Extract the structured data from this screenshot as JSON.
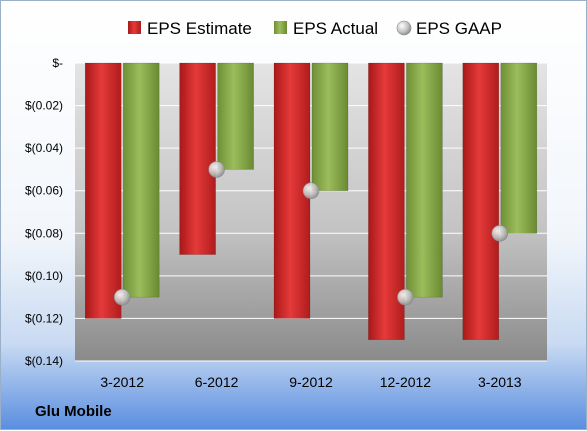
{
  "company": "Glu Mobile",
  "chart_data": {
    "type": "bar",
    "categories": [
      "3-2012",
      "6-2012",
      "9-2012",
      "12-2012",
      "3-2013"
    ],
    "series": [
      {
        "name": "EPS Estimate",
        "kind": "bar",
        "color": "#d42a2a",
        "values": [
          -0.12,
          -0.09,
          -0.12,
          -0.13,
          -0.13
        ]
      },
      {
        "name": "EPS Actual",
        "kind": "bar",
        "color": "#8aac4c",
        "values": [
          -0.11,
          -0.05,
          -0.06,
          -0.11,
          -0.08
        ]
      },
      {
        "name": "EPS GAAP",
        "kind": "marker",
        "color": "#c8c8c8",
        "values": [
          -0.11,
          -0.05,
          -0.06,
          -0.11,
          -0.08
        ]
      }
    ],
    "yticks": [
      0,
      -0.02,
      -0.04,
      -0.06,
      -0.08,
      -0.1,
      -0.12,
      -0.14
    ],
    "ytick_labels": [
      "$-",
      "$(0.02)",
      "$(0.04)",
      "$(0.06)",
      "$(0.08)",
      "$(0.10)",
      "$(0.12)",
      "$(0.14)"
    ],
    "ylim": [
      -0.14,
      0
    ],
    "grid": true,
    "legend_position": "top"
  }
}
